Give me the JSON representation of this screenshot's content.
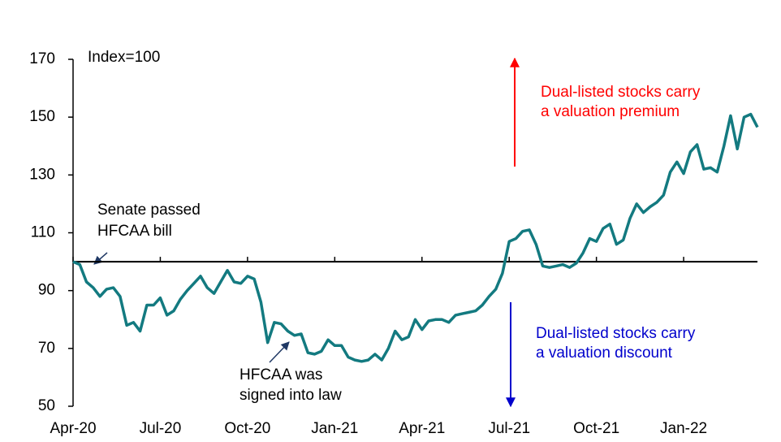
{
  "chart_data": {
    "type": "line",
    "y_axis_label": "Index=100",
    "categories": [
      "Apr-20",
      null,
      null,
      null,
      null,
      null,
      null,
      null,
      null,
      null,
      null,
      null,
      null,
      "Jul-20",
      null,
      null,
      null,
      null,
      null,
      null,
      null,
      null,
      null,
      null,
      null,
      null,
      "Oct-20",
      null,
      null,
      null,
      null,
      null,
      null,
      null,
      null,
      null,
      null,
      null,
      null,
      "Jan-21",
      null,
      null,
      null,
      null,
      null,
      null,
      null,
      null,
      null,
      null,
      null,
      null,
      "Apr-21",
      null,
      null,
      null,
      null,
      null,
      null,
      null,
      null,
      null,
      null,
      null,
      null,
      "Jul-21",
      null,
      null,
      null,
      null,
      null,
      null,
      null,
      null,
      null,
      null,
      null,
      null,
      "Oct-21",
      null,
      null,
      null,
      null,
      null,
      null,
      null,
      null,
      null,
      null,
      null,
      null,
      "Jan-22",
      null,
      null,
      null,
      null,
      null,
      null,
      null,
      null,
      null,
      null,
      null
    ],
    "series": [
      {
        "color": "#137a80",
        "values": [
          100,
          99,
          93,
          91,
          88,
          90.5,
          91,
          88,
          78,
          79,
          76,
          85,
          85,
          87.5,
          81.5,
          83,
          87,
          90,
          92.5,
          95,
          91,
          89,
          93,
          97,
          93,
          92.5,
          95,
          94,
          86,
          72,
          79,
          78.5,
          76,
          74.5,
          75,
          68.5,
          68,
          69,
          73,
          71,
          71,
          67,
          66,
          65.5,
          66,
          68,
          66,
          70,
          76,
          73,
          74,
          80,
          76.5,
          79.5,
          80,
          80,
          79,
          81.5,
          82,
          82.5,
          83,
          85,
          88,
          90.5,
          96,
          107,
          108,
          110.5,
          111,
          106,
          98.5,
          98,
          98.5,
          99,
          98,
          99.5,
          103,
          108,
          107,
          111.5,
          113,
          106,
          107.5,
          115,
          120,
          117,
          119,
          120.5,
          123,
          131,
          134.5,
          130.5,
          138,
          140.5,
          132,
          132.5,
          131,
          140,
          150.5,
          139,
          150,
          151,
          146.5
        ]
      }
    ],
    "ylim": [
      50,
      170
    ],
    "yticks": [
      50,
      70,
      90,
      110,
      130,
      150,
      170
    ],
    "x_axis_at": 100,
    "annotations": [
      {
        "lines": [
          "Senate passed",
          "HFCAA bill"
        ]
      },
      {
        "lines": [
          "HFCAA was",
          "signed into law"
        ]
      },
      {
        "lines": [
          "Dual-listed stocks carry",
          "a valuation premium"
        ],
        "color": "#ff0000"
      },
      {
        "lines": [
          "Dual-listed stocks carry",
          "a valuation discount"
        ],
        "color": "#0000cc"
      }
    ]
  }
}
